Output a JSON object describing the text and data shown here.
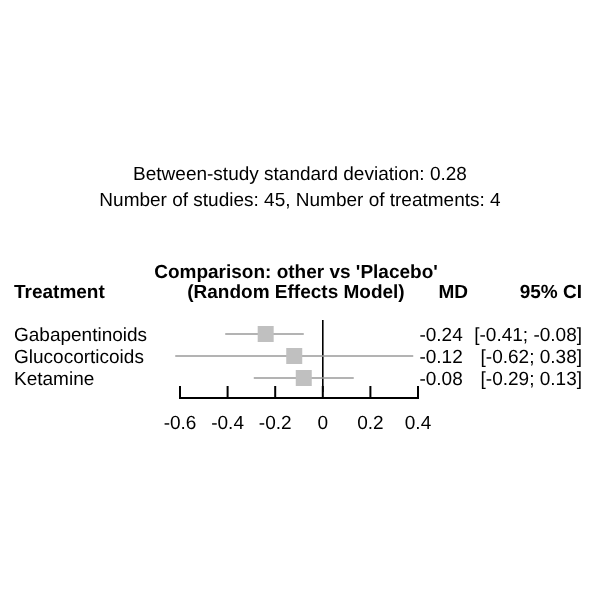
{
  "chart_data": {
    "type": "scatter",
    "orientation": "horizontal",
    "title": "Comparison: other vs 'Placebo'\n(Random Effects Model)",
    "ylabel": "Treatment",
    "categories": [
      "Gabapentinoids",
      "Glucocorticoids",
      "Ketamine"
    ],
    "values": [
      -0.24,
      -0.12,
      -0.08
    ],
    "errors": [
      [
        -0.41,
        -0.08
      ],
      [
        -0.62,
        0.38
      ],
      [
        -0.29,
        0.13
      ]
    ],
    "value_labels": [
      "-0.24 [-0.41; -0.08]",
      "-0.12 [-0.62; 0.38]",
      "-0.08 [-0.29; 0.13]"
    ],
    "color": "#c0c0c0",
    "marker": "square",
    "xlim": [
      -0.6,
      0.4
    ],
    "xticks": [
      -0.6,
      -0.4,
      -0.2,
      0,
      0.2,
      0.4
    ],
    "ref_lines": [
      {
        "axis": "x",
        "value": 0,
        "color": "#000000"
      }
    ],
    "annotations": [
      "Between-study standard deviation: 0.28",
      "Number of studies: 45, Number of treatments: 4",
      "MD",
      "95% CI"
    ]
  }
}
